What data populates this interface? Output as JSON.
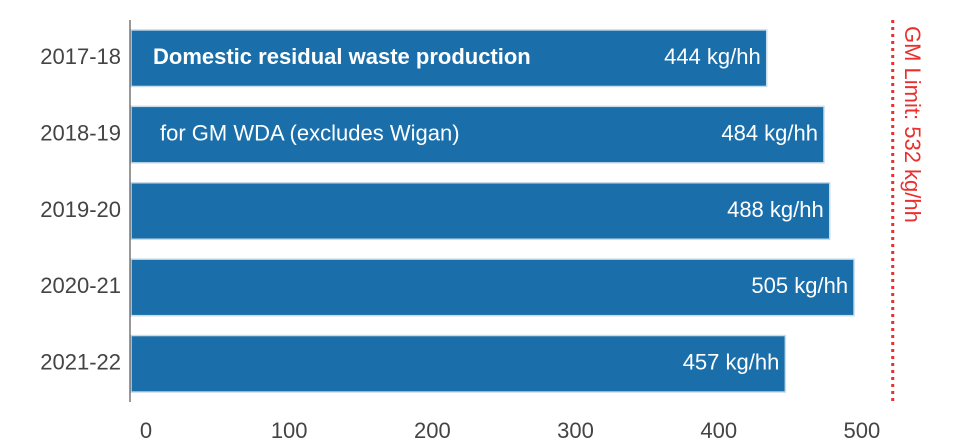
{
  "chart_data": {
    "type": "bar",
    "orientation": "horizontal",
    "categories": [
      "2017-18",
      "2018-19",
      "2019-20",
      "2020-21",
      "2021-22"
    ],
    "values": [
      444,
      484,
      488,
      505,
      457
    ],
    "value_labels": [
      "444 kg/hh",
      "484 kg/hh",
      "488 kg/hh",
      "505 kg/hh",
      "457 kg/hh"
    ],
    "color": "#1a6fab",
    "xlim": [
      0,
      572
    ],
    "xticks": [
      0,
      100,
      200,
      300,
      400,
      500
    ],
    "annotations": [
      "Domestic residual waste production",
      "for GM WDA (excludes Wigan)"
    ],
    "reference_line": {
      "value": 532,
      "label": "GM Limit: 532 kg/hh",
      "color": "#e8312f"
    }
  }
}
